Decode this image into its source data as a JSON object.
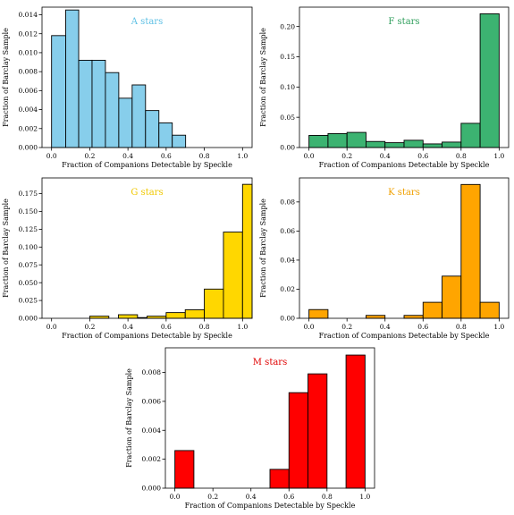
{
  "chart_data": [
    {
      "type": "bar",
      "panel": "A",
      "title": "A stars",
      "title_color": "#5bbfe4",
      "bar_color": "#87ceeb",
      "xlabel": "Fraction of Companions Detectable by Speckle",
      "ylabel": "Fraction of Barclay Sample",
      "xlim": [
        -0.05,
        1.05
      ],
      "ylim": [
        0,
        0.0148
      ],
      "xticks": [
        "0.0",
        "0.2",
        "0.4",
        "0.6",
        "0.8",
        "1.0"
      ],
      "yticks": [
        "0.000",
        "0.002",
        "0.004",
        "0.006",
        "0.008",
        "0.010",
        "0.012",
        "0.014"
      ],
      "bins": [
        {
          "x0": 0.0,
          "x1": 0.074,
          "value": 0.0118
        },
        {
          "x0": 0.074,
          "x1": 0.142,
          "value": 0.0145
        },
        {
          "x0": 0.142,
          "x1": 0.212,
          "value": 0.0092
        },
        {
          "x0": 0.212,
          "x1": 0.282,
          "value": 0.0092
        },
        {
          "x0": 0.282,
          "x1": 0.352,
          "value": 0.0079
        },
        {
          "x0": 0.352,
          "x1": 0.422,
          "value": 0.0052
        },
        {
          "x0": 0.422,
          "x1": 0.492,
          "value": 0.0066
        },
        {
          "x0": 0.492,
          "x1": 0.562,
          "value": 0.0039
        },
        {
          "x0": 0.562,
          "x1": 0.632,
          "value": 0.0026
        },
        {
          "x0": 0.632,
          "x1": 0.702,
          "value": 0.0013
        }
      ]
    },
    {
      "type": "bar",
      "panel": "F",
      "title": "F stars",
      "title_color": "#2e9e5b",
      "bar_color": "#3cb371",
      "xlabel": "Fraction of Companions Detectable by Speckle",
      "ylabel": "Fraction of Barclay Sample",
      "xlim": [
        -0.05,
        1.05
      ],
      "ylim": [
        0,
        0.232
      ],
      "xticks": [
        "0.0",
        "0.2",
        "0.4",
        "0.6",
        "0.8",
        "1.0"
      ],
      "yticks": [
        "0.00",
        "0.05",
        "0.10",
        "0.15",
        "0.20"
      ],
      "bins": [
        {
          "x0": 0.0,
          "x1": 0.1,
          "value": 0.02
        },
        {
          "x0": 0.1,
          "x1": 0.2,
          "value": 0.023
        },
        {
          "x0": 0.2,
          "x1": 0.3,
          "value": 0.025
        },
        {
          "x0": 0.3,
          "x1": 0.4,
          "value": 0.01
        },
        {
          "x0": 0.4,
          "x1": 0.5,
          "value": 0.008
        },
        {
          "x0": 0.5,
          "x1": 0.6,
          "value": 0.012
        },
        {
          "x0": 0.6,
          "x1": 0.7,
          "value": 0.006
        },
        {
          "x0": 0.7,
          "x1": 0.8,
          "value": 0.009
        },
        {
          "x0": 0.8,
          "x1": 0.9,
          "value": 0.04
        },
        {
          "x0": 0.9,
          "x1": 1.0,
          "value": 0.221
        }
      ]
    },
    {
      "type": "bar",
      "panel": "G",
      "title": "G stars",
      "title_color": "#f0c800",
      "bar_color": "#ffd700",
      "xlabel": "Fraction of Companions Detectable by Speckle",
      "ylabel": "Fraction of Barclay Sample",
      "xlim": [
        -0.05,
        1.05
      ],
      "ylim": [
        0,
        0.197
      ],
      "xticks": [
        "0.0",
        "0.2",
        "0.4",
        "0.6",
        "0.8",
        "1.0"
      ],
      "yticks": [
        "0.000",
        "0.025",
        "0.050",
        "0.075",
        "0.100",
        "0.125",
        "0.150",
        "0.175"
      ],
      "bins": [
        {
          "x0": 0.2,
          "x1": 0.3,
          "value": 0.003
        },
        {
          "x0": 0.4,
          "x1": 0.5,
          "value": 0.001
        },
        {
          "x0": 0.5,
          "x1": 0.6,
          "value": 0.003
        },
        {
          "x0": 0.6,
          "x1": 0.7,
          "value": 0.008
        },
        {
          "x0": 0.7,
          "x1": 0.8,
          "value": 0.012
        },
        {
          "x0": 0.8,
          "x1": 0.9,
          "value": 0.041
        },
        {
          "x0": 0.9,
          "x1": 1.0,
          "value": 0.121
        },
        {
          "x0": 1.0,
          "x1": 1.1,
          "value": 0.188
        }
      ],
      "extra_bins": [
        {
          "x0": 0.35,
          "x1": 0.45,
          "value": 0.005
        }
      ]
    },
    {
      "type": "bar",
      "panel": "K",
      "title": "K stars",
      "title_color": "#f0a000",
      "bar_color": "#ffa500",
      "xlabel": "Fraction of Companions Detectable by Speckle",
      "ylabel": "Fraction of Barclay Sample",
      "xlim": [
        -0.05,
        1.05
      ],
      "ylim": [
        0,
        0.0965
      ],
      "xticks": [
        "0.0",
        "0.2",
        "0.4",
        "0.6",
        "0.8",
        "1.0"
      ],
      "yticks": [
        "0.00",
        "0.02",
        "0.04",
        "0.06",
        "0.08"
      ],
      "bins": [
        {
          "x0": 0.0,
          "x1": 0.1,
          "value": 0.006
        },
        {
          "x0": 0.3,
          "x1": 0.4,
          "value": 0.002
        },
        {
          "x0": 0.5,
          "x1": 0.6,
          "value": 0.002
        },
        {
          "x0": 0.6,
          "x1": 0.7,
          "value": 0.011
        },
        {
          "x0": 0.7,
          "x1": 0.8,
          "value": 0.029
        },
        {
          "x0": 0.8,
          "x1": 0.9,
          "value": 0.092
        },
        {
          "x0": 0.9,
          "x1": 1.0,
          "value": 0.011
        }
      ]
    },
    {
      "type": "bar",
      "panel": "M",
      "title": "M stars",
      "title_color": "#e00000",
      "bar_color": "#ff0000",
      "xlabel": "Fraction of Companions Detectable by Speckle",
      "ylabel": "Fraction of Barclay Sample",
      "xlim": [
        -0.05,
        1.05
      ],
      "ylim": [
        0,
        0.0097
      ],
      "xticks": [
        "0.0",
        "0.2",
        "0.4",
        "0.6",
        "0.8",
        "1.0"
      ],
      "yticks": [
        "0.000",
        "0.002",
        "0.004",
        "0.006",
        "0.008"
      ],
      "bins": [
        {
          "x0": 0.0,
          "x1": 0.1,
          "value": 0.0026
        },
        {
          "x0": 0.5,
          "x1": 0.6,
          "value": 0.0013
        },
        {
          "x0": 0.6,
          "x1": 0.7,
          "value": 0.0066
        },
        {
          "x0": 0.7,
          "x1": 0.8,
          "value": 0.0079
        },
        {
          "x0": 0.9,
          "x1": 1.0,
          "value": 0.0092
        }
      ]
    }
  ]
}
